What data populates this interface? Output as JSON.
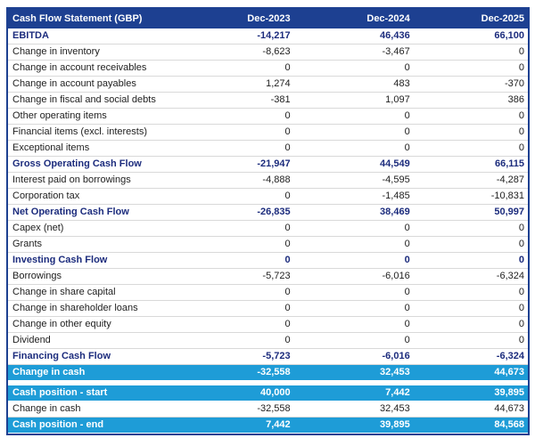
{
  "colors": {
    "header_bg": "#1d4091",
    "border_color": "#1d4091",
    "section_text": "#1c2c7d",
    "accent_row_bg": "#1e9cd7",
    "separator": "#d9d9d9",
    "normal_text": "#212121"
  },
  "chart_data": {
    "type": "table",
    "title": "Cash Flow Statement (GBP)",
    "columns": [
      "Dec-2023",
      "Dec-2024",
      "Dec-2025"
    ],
    "rows": [
      {
        "label": "EBITDA",
        "values": [
          "-14,217",
          "46,436",
          "66,100"
        ],
        "style": "section"
      },
      {
        "label": "Change in inventory",
        "values": [
          "-8,623",
          "-3,467",
          "0"
        ],
        "style": "normal"
      },
      {
        "label": "Change in account receivables",
        "values": [
          "0",
          "0",
          "0"
        ],
        "style": "normal"
      },
      {
        "label": "Change in account payables",
        "values": [
          "1,274",
          "483",
          "-370"
        ],
        "style": "normal"
      },
      {
        "label": "Change in fiscal and social debts",
        "values": [
          "-381",
          "1,097",
          "386"
        ],
        "style": "normal"
      },
      {
        "label": "Other operating items",
        "values": [
          "0",
          "0",
          "0"
        ],
        "style": "normal"
      },
      {
        "label": "Financial items (excl. interests)",
        "values": [
          "0",
          "0",
          "0"
        ],
        "style": "normal"
      },
      {
        "label": "Exceptional items",
        "values": [
          "0",
          "0",
          "0"
        ],
        "style": "normal"
      },
      {
        "label": "Gross Operating Cash Flow",
        "values": [
          "-21,947",
          "44,549",
          "66,115"
        ],
        "style": "section"
      },
      {
        "label": "Interest paid on borrowings",
        "values": [
          "-4,888",
          "-4,595",
          "-4,287"
        ],
        "style": "normal"
      },
      {
        "label": "Corporation tax",
        "values": [
          "0",
          "-1,485",
          "-10,831"
        ],
        "style": "normal"
      },
      {
        "label": "Net Operating Cash Flow",
        "values": [
          "-26,835",
          "38,469",
          "50,997"
        ],
        "style": "section"
      },
      {
        "label": "Capex (net)",
        "values": [
          "0",
          "0",
          "0"
        ],
        "style": "normal"
      },
      {
        "label": "Grants",
        "values": [
          "0",
          "0",
          "0"
        ],
        "style": "normal"
      },
      {
        "label": "Investing Cash Flow",
        "values": [
          "0",
          "0",
          "0"
        ],
        "style": "section"
      },
      {
        "label": "Borrowings",
        "values": [
          "-5,723",
          "-6,016",
          "-6,324"
        ],
        "style": "normal"
      },
      {
        "label": "Change in share capital",
        "values": [
          "0",
          "0",
          "0"
        ],
        "style": "normal"
      },
      {
        "label": "Change in shareholder loans",
        "values": [
          "0",
          "0",
          "0"
        ],
        "style": "normal"
      },
      {
        "label": "Change in other equity",
        "values": [
          "0",
          "0",
          "0"
        ],
        "style": "normal"
      },
      {
        "label": "Dividend",
        "values": [
          "0",
          "0",
          "0"
        ],
        "style": "normal"
      },
      {
        "label": "Financing Cash Flow",
        "values": [
          "-5,723",
          "-6,016",
          "-6,324"
        ],
        "style": "section"
      },
      {
        "label": "Change in cash",
        "values": [
          "-32,558",
          "32,453",
          "44,673"
        ],
        "style": "highlight"
      },
      {
        "label": "",
        "values": [
          "",
          "",
          ""
        ],
        "style": "spacer"
      },
      {
        "label": "Cash position - start",
        "values": [
          "40,000",
          "7,442",
          "39,895"
        ],
        "style": "highlight"
      },
      {
        "label": "Change in cash",
        "values": [
          "-32,558",
          "32,453",
          "44,673"
        ],
        "style": "normal"
      },
      {
        "label": "Cash position - end",
        "values": [
          "7,442",
          "39,895",
          "84,568"
        ],
        "style": "highlight"
      }
    ]
  }
}
